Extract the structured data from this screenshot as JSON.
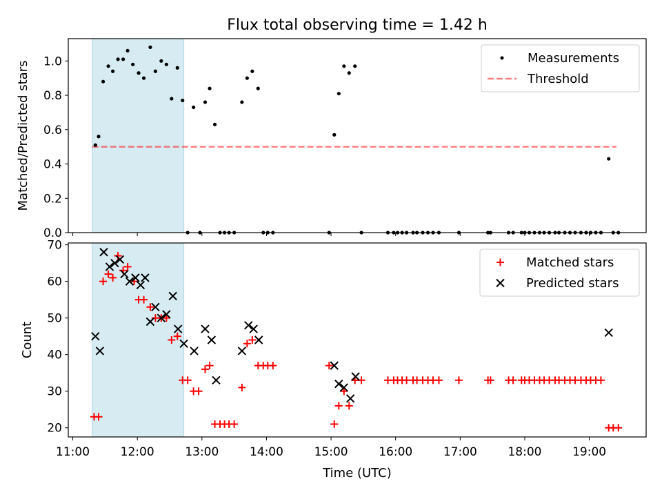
{
  "title": "Flux total observing time = 1.42 h",
  "colors": {
    "span": "#add8e6",
    "threshold": "#ff0000",
    "matched": "#ff0000",
    "predicted": "#000000",
    "measurement": "#000000"
  },
  "chart_data": [
    {
      "type": "scatter",
      "name": "ratio",
      "ylabel": "Matched/Predicted stars",
      "xlim": [
        10.93,
        19.88
      ],
      "ylim": [
        0.0,
        1.13
      ],
      "yticks": [
        0.0,
        0.2,
        0.4,
        0.6,
        0.8,
        1.0
      ],
      "ytick_labels": [
        "0.0",
        "0.2",
        "0.4",
        "0.6",
        "0.8",
        "1.0"
      ],
      "span": [
        11.3,
        12.72
      ],
      "threshold": {
        "name": "Threshold",
        "y": 0.5,
        "x": [
          11.3,
          19.42
        ]
      },
      "legend": [
        "Measurements",
        "Threshold"
      ],
      "legend_position": "upper right",
      "series": [
        {
          "name": "Measurements",
          "points": [
            [
              11.35,
              0.51
            ],
            [
              11.4,
              0.56
            ],
            [
              11.47,
              0.88
            ],
            [
              11.55,
              0.97
            ],
            [
              11.62,
              0.94
            ],
            [
              11.7,
              1.01
            ],
            [
              11.78,
              1.01
            ],
            [
              11.85,
              1.06
            ],
            [
              11.93,
              0.98
            ],
            [
              12.02,
              0.93
            ],
            [
              12.1,
              0.9
            ],
            [
              12.2,
              1.08
            ],
            [
              12.28,
              0.94
            ],
            [
              12.37,
              1.0
            ],
            [
              12.45,
              0.98
            ],
            [
              12.53,
              0.78
            ],
            [
              12.62,
              0.96
            ],
            [
              12.7,
              0.77
            ],
            [
              12.78,
              0.0
            ],
            [
              12.87,
              0.73
            ],
            [
              12.97,
              0.0
            ],
            [
              13.05,
              0.76
            ],
            [
              13.12,
              0.84
            ],
            [
              13.2,
              0.63
            ],
            [
              13.28,
              0.0
            ],
            [
              13.35,
              0.0
            ],
            [
              13.42,
              0.0
            ],
            [
              13.5,
              0.0
            ],
            [
              13.62,
              0.76
            ],
            [
              13.7,
              0.9
            ],
            [
              13.78,
              0.94
            ],
            [
              13.87,
              0.84
            ],
            [
              13.95,
              0.0
            ],
            [
              14.02,
              0.0
            ],
            [
              14.1,
              0.0
            ],
            [
              14.97,
              0.0
            ],
            [
              15.05,
              0.57
            ],
            [
              15.12,
              0.81
            ],
            [
              15.2,
              0.97
            ],
            [
              15.28,
              0.93
            ],
            [
              15.37,
              0.97
            ],
            [
              15.47,
              0.0
            ],
            [
              15.88,
              0.0
            ],
            [
              15.97,
              0.0
            ],
            [
              16.03,
              0.0
            ],
            [
              16.1,
              0.0
            ],
            [
              16.17,
              0.0
            ],
            [
              16.27,
              0.0
            ],
            [
              16.33,
              0.0
            ],
            [
              16.42,
              0.0
            ],
            [
              16.5,
              0.0
            ],
            [
              16.58,
              0.0
            ],
            [
              16.67,
              0.0
            ],
            [
              16.98,
              0.0
            ],
            [
              17.43,
              0.0
            ],
            [
              17.47,
              0.0
            ],
            [
              17.75,
              0.0
            ],
            [
              17.82,
              0.0
            ],
            [
              17.95,
              0.0
            ],
            [
              18.0,
              0.0
            ],
            [
              18.07,
              0.0
            ],
            [
              18.15,
              0.0
            ],
            [
              18.23,
              0.0
            ],
            [
              18.3,
              0.0
            ],
            [
              18.38,
              0.0
            ],
            [
              18.47,
              0.0
            ],
            [
              18.53,
              0.0
            ],
            [
              18.62,
              0.0
            ],
            [
              18.7,
              0.0
            ],
            [
              18.78,
              0.0
            ],
            [
              18.87,
              0.0
            ],
            [
              18.95,
              0.0
            ],
            [
              19.02,
              0.0
            ],
            [
              19.1,
              0.0
            ],
            [
              19.18,
              0.0
            ],
            [
              19.3,
              0.43
            ],
            [
              19.37,
              0.0
            ],
            [
              19.45,
              0.0
            ]
          ]
        }
      ]
    },
    {
      "type": "scatter",
      "name": "counts",
      "xlabel": "Time (UTC)",
      "ylabel": "Count",
      "xlim": [
        10.93,
        19.88
      ],
      "ylim": [
        17.5,
        70.5
      ],
      "xticks": [
        11,
        12,
        13,
        14,
        15,
        16,
        17,
        18,
        19
      ],
      "xtick_labels": [
        "11:00",
        "12:00",
        "13:00",
        "14:00",
        "15:00",
        "16:00",
        "17:00",
        "18:00",
        "19:00"
      ],
      "yticks": [
        20,
        30,
        40,
        50,
        60,
        70
      ],
      "ytick_labels": [
        "20",
        "30",
        "40",
        "50",
        "60",
        "70"
      ],
      "span": [
        11.3,
        12.72
      ],
      "legend": [
        "Matched stars",
        "Predicted stars"
      ],
      "legend_position": "upper right",
      "series": [
        {
          "name": "Matched stars",
          "marker": "+",
          "points": [
            [
              11.33,
              23
            ],
            [
              11.4,
              23
            ],
            [
              11.47,
              60
            ],
            [
              11.55,
              62
            ],
            [
              11.62,
              61
            ],
            [
              11.7,
              67
            ],
            [
              11.78,
              63
            ],
            [
              11.85,
              64
            ],
            [
              11.95,
              60
            ],
            [
              12.02,
              55
            ],
            [
              12.1,
              55
            ],
            [
              12.2,
              53
            ],
            [
              12.28,
              50
            ],
            [
              12.37,
              50
            ],
            [
              12.45,
              50
            ],
            [
              12.53,
              44
            ],
            [
              12.62,
              45
            ],
            [
              12.7,
              33
            ],
            [
              12.78,
              33
            ],
            [
              12.87,
              30
            ],
            [
              12.95,
              30
            ],
            [
              13.05,
              36
            ],
            [
              13.12,
              37
            ],
            [
              13.2,
              21
            ],
            [
              13.28,
              21
            ],
            [
              13.35,
              21
            ],
            [
              13.42,
              21
            ],
            [
              13.5,
              21
            ],
            [
              13.62,
              31
            ],
            [
              13.7,
              43
            ],
            [
              13.78,
              44
            ],
            [
              13.87,
              37
            ],
            [
              13.95,
              37
            ],
            [
              14.02,
              37
            ],
            [
              14.1,
              37
            ],
            [
              14.97,
              37
            ],
            [
              15.05,
              21
            ],
            [
              15.12,
              26
            ],
            [
              15.2,
              30
            ],
            [
              15.28,
              26
            ],
            [
              15.37,
              33
            ],
            [
              15.47,
              33
            ],
            [
              15.88,
              33
            ],
            [
              15.97,
              33
            ],
            [
              16.03,
              33
            ],
            [
              16.1,
              33
            ],
            [
              16.17,
              33
            ],
            [
              16.27,
              33
            ],
            [
              16.33,
              33
            ],
            [
              16.42,
              33
            ],
            [
              16.5,
              33
            ],
            [
              16.58,
              33
            ],
            [
              16.67,
              33
            ],
            [
              16.98,
              33
            ],
            [
              17.43,
              33
            ],
            [
              17.47,
              33
            ],
            [
              17.75,
              33
            ],
            [
              17.82,
              33
            ],
            [
              17.95,
              33
            ],
            [
              18.0,
              33
            ],
            [
              18.07,
              33
            ],
            [
              18.15,
              33
            ],
            [
              18.23,
              33
            ],
            [
              18.3,
              33
            ],
            [
              18.38,
              33
            ],
            [
              18.47,
              33
            ],
            [
              18.53,
              33
            ],
            [
              18.62,
              33
            ],
            [
              18.7,
              33
            ],
            [
              18.78,
              33
            ],
            [
              18.87,
              33
            ],
            [
              18.95,
              33
            ],
            [
              19.02,
              33
            ],
            [
              19.1,
              33
            ],
            [
              19.18,
              33
            ],
            [
              19.3,
              20
            ],
            [
              19.37,
              20
            ],
            [
              19.45,
              20
            ]
          ]
        },
        {
          "name": "Predicted stars",
          "marker": "x",
          "points": [
            [
              11.35,
              45
            ],
            [
              11.42,
              41
            ],
            [
              11.48,
              68
            ],
            [
              11.57,
              64
            ],
            [
              11.65,
              65
            ],
            [
              11.73,
              66
            ],
            [
              11.8,
              62
            ],
            [
              11.88,
              60
            ],
            [
              11.97,
              61
            ],
            [
              12.05,
              59
            ],
            [
              12.12,
              61
            ],
            [
              12.2,
              49
            ],
            [
              12.28,
              53
            ],
            [
              12.37,
              50
            ],
            [
              12.45,
              51
            ],
            [
              12.55,
              56
            ],
            [
              12.63,
              47
            ],
            [
              12.72,
              43
            ],
            [
              12.88,
              41
            ],
            [
              13.05,
              47
            ],
            [
              13.15,
              44
            ],
            [
              13.22,
              33
            ],
            [
              13.62,
              41
            ],
            [
              13.72,
              48
            ],
            [
              13.8,
              47
            ],
            [
              13.88,
              44
            ],
            [
              15.05,
              37
            ],
            [
              15.12,
              32
            ],
            [
              15.2,
              31
            ],
            [
              15.3,
              28
            ],
            [
              15.38,
              34
            ],
            [
              19.3,
              46
            ]
          ]
        }
      ]
    }
  ]
}
